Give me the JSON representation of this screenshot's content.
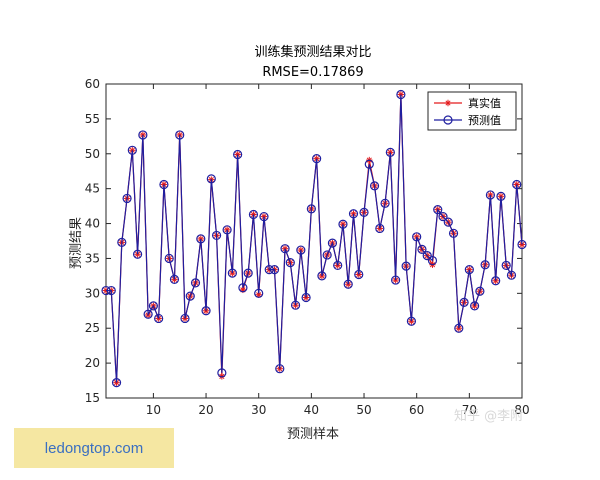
{
  "chart_data": {
    "type": "line",
    "title": "训练集预测结果对比",
    "subtitle": "RMSE=0.17869",
    "xlabel": "预测样本",
    "ylabel": "预测结果",
    "xlim": [
      1,
      80
    ],
    "ylim": [
      15,
      60
    ],
    "xticks": [
      10,
      20,
      30,
      40,
      50,
      60,
      70,
      80
    ],
    "yticks": [
      15,
      20,
      25,
      30,
      35,
      40,
      45,
      50,
      55,
      60
    ],
    "legend_position": "top-right",
    "x": [
      1,
      2,
      3,
      4,
      5,
      6,
      7,
      8,
      9,
      10,
      11,
      12,
      13,
      14,
      15,
      16,
      17,
      18,
      19,
      20,
      21,
      22,
      23,
      24,
      25,
      26,
      27,
      28,
      29,
      30,
      31,
      32,
      33,
      34,
      35,
      36,
      37,
      38,
      39,
      40,
      41,
      42,
      43,
      44,
      45,
      46,
      47,
      48,
      49,
      50,
      51,
      52,
      53,
      54,
      55,
      56,
      57,
      58,
      59,
      60,
      61,
      62,
      63,
      64,
      65,
      66,
      67,
      68,
      69,
      70,
      71,
      72,
      73,
      74,
      75,
      76,
      77,
      78,
      79,
      80
    ],
    "series": [
      {
        "name": "真实值",
        "color": "#e41a1c",
        "marker": "asterisk",
        "values": [
          30.4,
          30.4,
          17.2,
          37.3,
          43.6,
          50.5,
          35.6,
          52.7,
          26.9,
          28.2,
          26.4,
          45.6,
          35.0,
          32.0,
          52.7,
          26.4,
          29.6,
          31.5,
          37.8,
          27.5,
          46.3,
          38.3,
          18.1,
          39.1,
          32.9,
          49.9,
          30.5,
          32.9,
          41.3,
          29.8,
          41.0,
          33.4,
          33.4,
          19.2,
          36.4,
          34.4,
          28.3,
          36.2,
          29.4,
          42.1,
          49.3,
          32.5,
          35.5,
          37.2,
          34.0,
          39.9,
          31.3,
          41.4,
          32.7,
          41.6,
          49.1,
          45.4,
          39.3,
          42.9,
          50.2,
          31.9,
          58.5,
          33.9,
          26.0,
          38.1,
          36.3,
          35.4,
          34.1,
          42.0,
          41.0,
          40.2,
          38.6,
          25.0,
          28.7,
          33.4,
          28.2,
          30.3,
          34.1,
          44.1,
          31.8,
          43.9,
          34.0,
          32.6,
          45.6,
          37.0
        ]
      },
      {
        "name": "预测值",
        "color": "#1f1fa0",
        "marker": "circle",
        "values": [
          30.4,
          30.4,
          17.2,
          37.3,
          43.6,
          50.5,
          35.6,
          52.7,
          27.0,
          28.2,
          26.4,
          45.6,
          35.0,
          32.0,
          52.7,
          26.4,
          29.6,
          31.5,
          37.8,
          27.5,
          46.4,
          38.3,
          18.6,
          39.1,
          32.9,
          49.9,
          30.8,
          32.9,
          41.3,
          30.0,
          41.0,
          33.4,
          33.4,
          19.2,
          36.4,
          34.4,
          28.3,
          36.2,
          29.4,
          42.1,
          49.3,
          32.5,
          35.5,
          37.2,
          34.0,
          39.9,
          31.3,
          41.4,
          32.7,
          41.6,
          48.5,
          45.4,
          39.3,
          42.9,
          50.2,
          31.9,
          58.5,
          33.9,
          26.0,
          38.1,
          36.3,
          35.4,
          34.7,
          42.0,
          41.0,
          40.2,
          38.6,
          25.0,
          28.7,
          33.4,
          28.2,
          30.3,
          34.1,
          44.1,
          31.8,
          43.9,
          34.0,
          32.6,
          45.6,
          37.0
        ]
      }
    ]
  },
  "watermark": "知乎 @李附",
  "site_label": "ledongtop.com"
}
